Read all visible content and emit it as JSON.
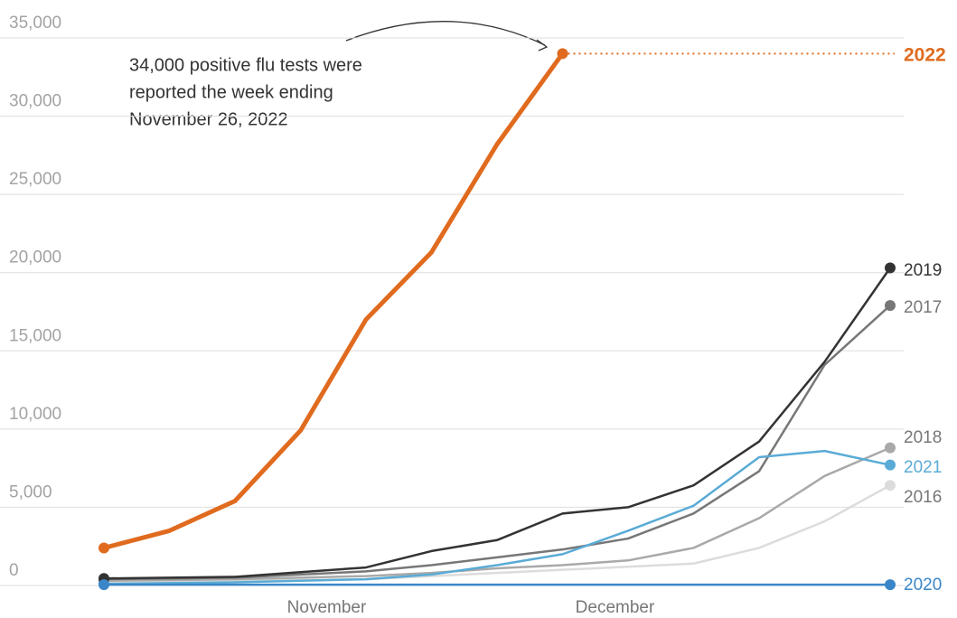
{
  "chart_data": {
    "type": "line",
    "annotation": [
      "34,000 positive flu tests were",
      "reported the week ending",
      "November 26, 2022"
    ],
    "x": [
      0,
      1,
      2,
      3,
      4,
      5,
      6,
      7,
      8,
      9,
      10,
      11,
      12
    ],
    "xlim": [
      0,
      12
    ],
    "xticks": [
      {
        "value": 3.4,
        "label": "November"
      },
      {
        "value": 7.8,
        "label": "December"
      }
    ],
    "ylim": [
      0,
      35000
    ],
    "yticks": [
      0,
      {
        "value": 5000,
        "label": "5,000"
      },
      {
        "value": 10000,
        "label": "10,000"
      },
      {
        "value": 15000,
        "label": "15,000"
      },
      {
        "value": 20000,
        "label": "20,000"
      },
      {
        "value": 25000,
        "label": "25,000"
      },
      {
        "value": 30000,
        "label": "30,000"
      },
      {
        "value": 35000,
        "label": "35,000"
      }
    ],
    "grid": true,
    "series": [
      {
        "name": "2016",
        "color": "#dcdcdc",
        "values": [
          200,
          250,
          300,
          350,
          400,
          600,
          800,
          1000,
          1200,
          1400,
          2400,
          4100,
          6400
        ]
      },
      {
        "name": "2018",
        "color": "#a9a9a9",
        "values": [
          300,
          350,
          400,
          500,
          600,
          800,
          1100,
          1300,
          1600,
          2400,
          4300,
          7000,
          8800
        ]
      },
      {
        "name": "2017",
        "color": "#777777",
        "values": [
          400,
          450,
          500,
          700,
          900,
          1300,
          1800,
          2300,
          3000,
          4600,
          7300,
          14100,
          17900
        ]
      },
      {
        "name": "2021",
        "color": "#5aabd6",
        "values": [
          100,
          150,
          200,
          300,
          400,
          700,
          1300,
          2000,
          3500,
          5100,
          8200,
          8600,
          7700
        ]
      },
      {
        "name": "2019",
        "color": "#333333",
        "values": [
          450,
          500,
          550,
          850,
          1150,
          2200,
          2900,
          4600,
          5000,
          6400,
          9200,
          14300,
          20300
        ]
      },
      {
        "name": "2020",
        "color": "#3a86c8",
        "values": [
          50,
          50,
          50,
          50,
          50,
          50,
          50,
          50,
          50,
          50,
          50,
          50,
          50
        ]
      },
      {
        "name": "2022",
        "color": "#e06b1f",
        "values": [
          2400,
          3500,
          5400,
          9900,
          17000,
          21300,
          28200,
          34000,
          null,
          null,
          null,
          null,
          null
        ]
      }
    ]
  }
}
